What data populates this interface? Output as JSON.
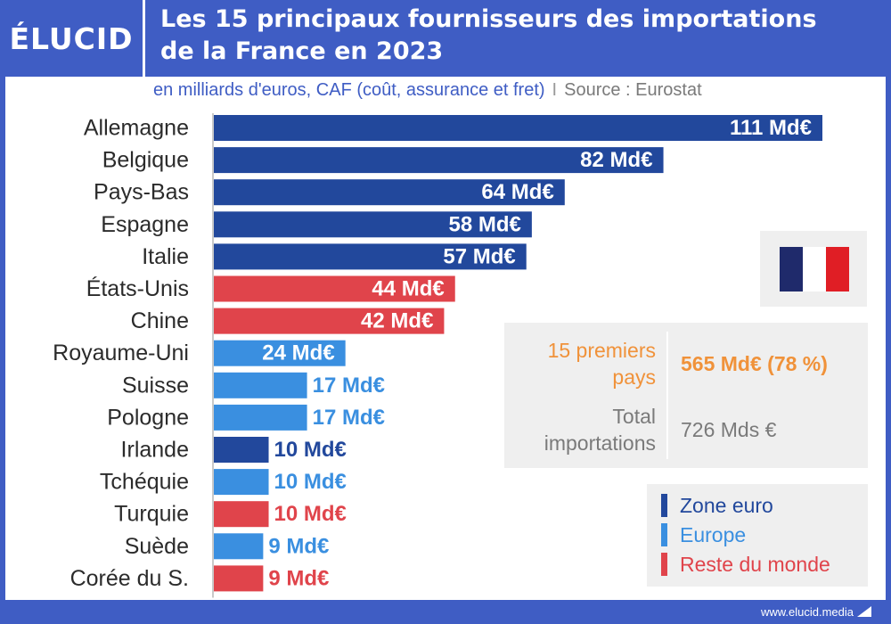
{
  "header": {
    "logo": "ÉLUCID",
    "title_line1": "Les 15 principaux fournisseurs des importations",
    "title_line2": "de la France en 2023"
  },
  "subtitle": {
    "unit": "en milliards d'euros, CAF (coût, assurance et fret)",
    "separator": "I",
    "source": "Source : Eurostat"
  },
  "colors": {
    "zone_euro": "#22489c",
    "europe": "#3a8fe0",
    "reste_du_monde": "#e0444b",
    "accent_orange": "#f0923a",
    "grey_text": "#7a7a7a"
  },
  "chart_data": {
    "type": "bar",
    "orientation": "horizontal",
    "title": "Les 15 principaux fournisseurs des importations de la France en 2023",
    "unit": "Md€",
    "categories": [
      "Allemagne",
      "Belgique",
      "Pays-Bas",
      "Espagne",
      "Italie",
      "États-Unis",
      "Chine",
      "Royaume-Uni",
      "Suisse",
      "Pologne",
      "Irlande",
      "Tchéquie",
      "Turquie",
      "Suède",
      "Corée du S."
    ],
    "values": [
      111,
      82,
      64,
      58,
      57,
      44,
      42,
      24,
      17,
      17,
      10,
      10,
      10,
      9,
      9
    ],
    "value_labels": [
      "111 Md€",
      "82 Md€",
      "64 Md€",
      "58 Md€",
      "57 Md€",
      "44 Md€",
      "42 Md€",
      "24 Md€",
      "17 Md€",
      "17 Md€",
      "10 Md€",
      "10 Md€",
      "10 Md€",
      "9 Md€",
      "9 Md€"
    ],
    "groups": [
      "zone_euro",
      "zone_euro",
      "zone_euro",
      "zone_euro",
      "zone_euro",
      "reste_du_monde",
      "reste_du_monde",
      "europe",
      "europe",
      "europe",
      "zone_euro",
      "europe",
      "reste_du_monde",
      "europe",
      "reste_du_monde"
    ],
    "xlim": [
      0,
      111
    ],
    "grid": false,
    "legend_placement": "bottom-right"
  },
  "summary": {
    "top_label": "15 premiers pays",
    "top_value": "565 Md€ (78 %)",
    "total_label": "Total importations",
    "total_value": "726 Mds €"
  },
  "legend": [
    {
      "label": "Zone euro",
      "group": "zone_euro"
    },
    {
      "label": "Europe",
      "group": "europe"
    },
    {
      "label": "Reste du monde",
      "group": "reste_du_monde"
    }
  ],
  "footer": {
    "url": "www.elucid.media"
  }
}
